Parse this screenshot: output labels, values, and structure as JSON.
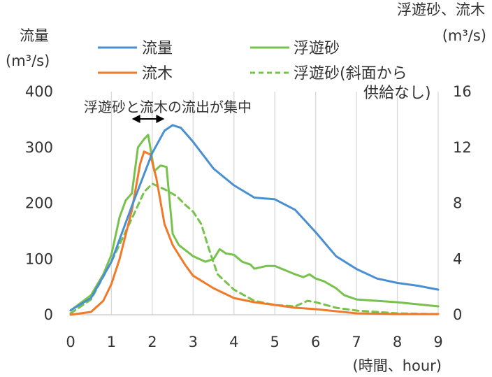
{
  "chart_data": {
    "type": "line",
    "title": "",
    "left_axis": {
      "label_lines": [
        "流量",
        "(m³/s)"
      ],
      "ticks": [
        "0",
        "100",
        "200",
        "300",
        "400"
      ],
      "ylim": [
        0,
        400
      ]
    },
    "right_axis": {
      "label_lines": [
        "浮遊砂、流木",
        "(m³/s)"
      ],
      "ticks": [
        "0",
        "4",
        "8",
        "12",
        "16"
      ],
      "ylim": [
        0,
        16
      ]
    },
    "x_axis": {
      "label": "(時間、hour)",
      "ticks": [
        "0",
        "1",
        "2",
        "3",
        "4",
        "5",
        "6",
        "7",
        "8",
        "9"
      ],
      "xlim": [
        0,
        9
      ]
    },
    "grid": "vertical",
    "legend": {
      "placement": "top",
      "entries": [
        "流量",
        "浮遊砂",
        "流木",
        "浮遊砂(斜面から供給なし)"
      ],
      "last_entry_lines": [
        "浮遊砂(斜面から",
        "供給なし)"
      ]
    },
    "annotation": {
      "text": "浮遊砂と流木の流出が集中",
      "arrow_from": 1.5,
      "arrow_to": 2.3
    },
    "series": [
      {
        "name": "流量",
        "axis": "left",
        "color": "#4a8fd1",
        "dash": false,
        "x": [
          0,
          0.5,
          1,
          1.5,
          2,
          2.3,
          2.5,
          2.7,
          3,
          3.5,
          4,
          4.5,
          5,
          5.5,
          6,
          6.5,
          7,
          7.5,
          8,
          8.5,
          9
        ],
        "y": [
          8,
          30,
          95,
          195,
          290,
          330,
          340,
          335,
          310,
          262,
          232,
          210,
          207,
          188,
          148,
          105,
          82,
          65,
          57,
          52,
          45
        ]
      },
      {
        "name": "流木",
        "axis": "right",
        "color": "#f07a2a",
        "dash": false,
        "x": [
          0,
          0.5,
          0.8,
          1,
          1.2,
          1.5,
          1.7,
          1.8,
          1.95,
          2.1,
          2.3,
          2.5,
          2.8,
          3,
          3.5,
          4,
          4.5,
          5,
          5.5,
          6,
          6.5,
          7,
          8,
          9
        ],
        "y": [
          0,
          0.2,
          1.0,
          2.2,
          4.0,
          7.5,
          10.8,
          11.7,
          11.5,
          9.8,
          6.5,
          5.0,
          3.6,
          2.8,
          1.9,
          1.2,
          0.9,
          0.7,
          0.5,
          0.4,
          0.25,
          0.1,
          0.05,
          0.05
        ]
      },
      {
        "name": "浮遊砂",
        "axis": "right",
        "color": "#77c24c",
        "dash": false,
        "x": [
          0,
          0.5,
          0.8,
          1,
          1.2,
          1.35,
          1.5,
          1.65,
          1.8,
          1.9,
          2.05,
          2.2,
          2.35,
          2.5,
          2.65,
          3,
          3.3,
          3.5,
          3.65,
          3.8,
          4,
          4.2,
          4.4,
          4.5,
          4.8,
          5,
          5.5,
          5.7,
          5.85,
          6,
          6.2,
          6.5,
          6.7,
          7,
          8,
          9
        ],
        "y": [
          0.3,
          1.4,
          2.9,
          4.3,
          7.0,
          8.2,
          8.7,
          12.0,
          12.6,
          12.9,
          10.3,
          10.7,
          10.6,
          5.8,
          5.0,
          4.2,
          3.8,
          4.0,
          4.7,
          4.4,
          4.3,
          3.8,
          3.6,
          3.3,
          3.5,
          3.5,
          2.9,
          2.7,
          2.9,
          2.6,
          2.4,
          1.9,
          1.4,
          1.1,
          0.9,
          0.6
        ]
      },
      {
        "name": "浮遊砂(斜面から供給なし)",
        "axis": "right",
        "color": "#77c24c",
        "dash": true,
        "x": [
          0,
          0.5,
          1,
          1.5,
          1.8,
          2,
          2.3,
          2.6,
          2.8,
          3,
          3.2,
          3.4,
          3.6,
          4,
          4.5,
          5,
          5.5,
          5.8,
          6,
          6.5,
          7,
          8,
          9
        ],
        "y": [
          0.1,
          1.1,
          3.8,
          6.9,
          8.8,
          9.4,
          9.0,
          8.5,
          7.9,
          7.4,
          6.5,
          4.6,
          2.9,
          1.8,
          1.0,
          0.7,
          0.6,
          1.0,
          0.9,
          0.5,
          0.3,
          0.1,
          0.05
        ]
      }
    ]
  }
}
